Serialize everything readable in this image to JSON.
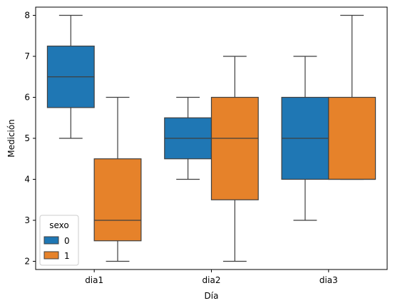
{
  "chart_data": {
    "type": "box",
    "xlabel": "Día",
    "ylabel": "Medición",
    "categories": [
      "dia1",
      "dia2",
      "dia3"
    ],
    "ylim": [
      1.8,
      8.2
    ],
    "yticks": [
      2,
      3,
      4,
      5,
      6,
      7,
      8
    ],
    "grid": false,
    "legend": {
      "title": "sexo",
      "placement": "lower-left",
      "entries": [
        "0",
        "1"
      ]
    },
    "series": [
      {
        "name": "0",
        "color": "#1f77b4",
        "boxes": [
          {
            "category": "dia1",
            "min": 5,
            "q1": 5.75,
            "median": 6.5,
            "q3": 7.25,
            "max": 8
          },
          {
            "category": "dia2",
            "min": 4,
            "q1": 4.5,
            "median": 5,
            "q3": 5.5,
            "max": 6
          },
          {
            "category": "dia3",
            "min": 3,
            "q1": 4,
            "median": 5,
            "q3": 6,
            "max": 7
          }
        ]
      },
      {
        "name": "1",
        "color": "#e6822a",
        "boxes": [
          {
            "category": "dia1",
            "min": 2,
            "q1": 2.5,
            "median": 3,
            "q3": 4.5,
            "max": 6
          },
          {
            "category": "dia2",
            "min": 2,
            "q1": 3.5,
            "median": 5,
            "q3": 6,
            "max": 7
          },
          {
            "category": "dia3",
            "min": 4,
            "q1": 4,
            "median": 4,
            "q3": 6,
            "max": 8
          }
        ]
      }
    ]
  }
}
